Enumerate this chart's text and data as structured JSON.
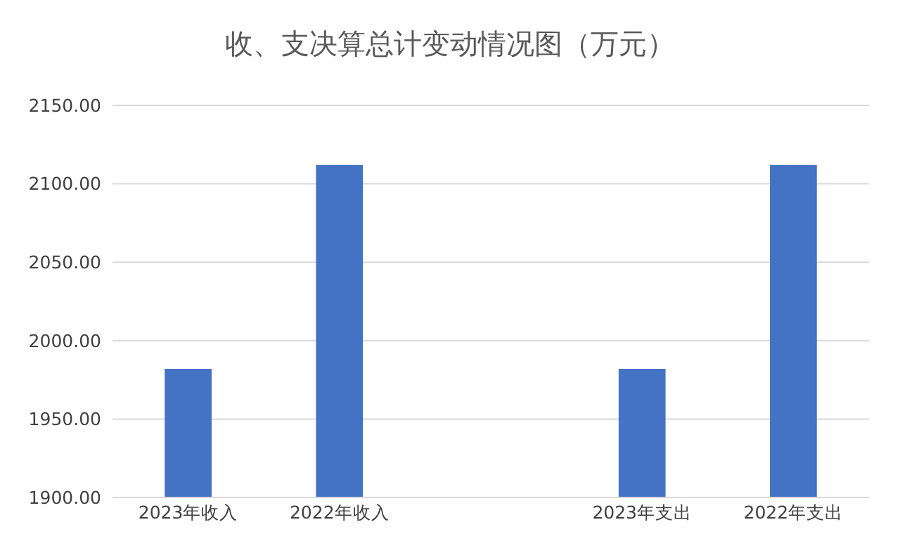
{
  "chart_data": {
    "type": "bar",
    "title": "收、支决算总计变动情况图（万元）",
    "categories": [
      "2023年收入",
      "2022年收入",
      null,
      "2023年支出",
      "2022年支出"
    ],
    "values": [
      1982,
      2112,
      null,
      1982,
      2112
    ],
    "color": "#4472c4",
    "ylim": [
      1900,
      2150
    ],
    "yticks": [
      {
        "value": 1900,
        "label": "1900.00"
      },
      {
        "value": 1950,
        "label": "1950.00"
      },
      {
        "value": 2000,
        "label": "2000.00"
      },
      {
        "value": 2050,
        "label": "2050.00"
      },
      {
        "value": 2100,
        "label": "2100.00"
      },
      {
        "value": 2150,
        "label": "2150.00"
      }
    ],
    "grid": "y"
  }
}
